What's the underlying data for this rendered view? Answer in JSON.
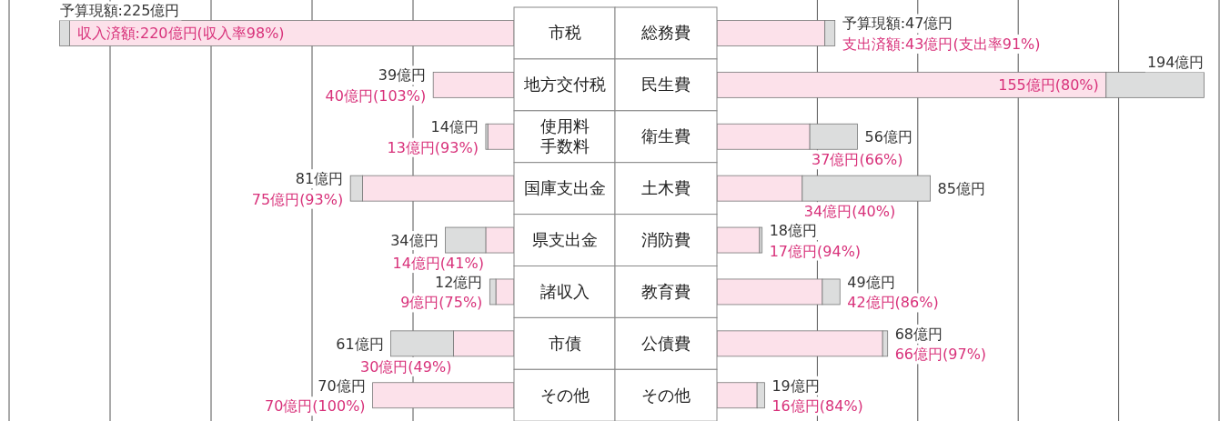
{
  "chart_data": [
    {
      "type": "bar",
      "orientation": "horizontal",
      "stacked": true,
      "categories": [
        "市税",
        "地方交付税",
        "使用料手数料",
        "国庫支出金",
        "県支出金",
        "諸収入",
        "市債",
        "その他"
      ],
      "series": [
        {
          "color": "#fce1ea",
          "values": [
            220,
            40,
            13,
            75,
            14,
            9,
            30,
            70
          ],
          "value_labels": [
            "収入済額:220億円(収入率98%)",
            "40億円(103%)",
            "13億円(93%)",
            "75億円(93%)",
            "14億円(41%)",
            "9億円(75%)",
            "30億円(49%)",
            "70億円(100%)"
          ]
        },
        {
          "color": "#dcdddd",
          "values": [
            5,
            0,
            1,
            6,
            20,
            3,
            31,
            0
          ]
        }
      ],
      "totals": [
        "予算現額:225億円",
        "39億円",
        "14億円",
        "81億円",
        "34億円",
        "12億円",
        "61億円",
        "70億円"
      ],
      "xlim": [
        250,
        0
      ],
      "xticks": [
        {
          "value": 50,
          "label": null
        },
        {
          "value": 100,
          "label": null
        },
        {
          "value": 150,
          "label": null
        },
        {
          "value": 200,
          "label": null
        },
        {
          "value": 250,
          "label": null
        }
      ],
      "grid": "x"
    },
    {
      "type": "bar",
      "orientation": "horizontal",
      "stacked": true,
      "categories": [
        "総務費",
        "民生費",
        "衛生費",
        "土木費",
        "消防費",
        "教育費",
        "公債費",
        "その他"
      ],
      "series": [
        {
          "color": "#fce1ea",
          "values": [
            43,
            155,
            37,
            34,
            17,
            42,
            66,
            16
          ],
          "value_labels": [
            "支出済額:43億円(支出率91%)",
            "155億円(80%)",
            "37億円(66%)",
            "34億円(40%)",
            "17億円(94%)",
            "42億円(86%)",
            "66億円(97%)",
            "16億円(84%)"
          ]
        },
        {
          "color": "#dcdddd",
          "values": [
            4,
            39,
            19,
            51,
            1,
            7,
            2,
            3
          ]
        }
      ],
      "totals": [
        "予算現額:47億円",
        "194億円",
        "56億円",
        "85億円",
        "18億円",
        "49億円",
        "68億円",
        "19億円"
      ],
      "xlim": [
        0,
        200
      ],
      "xticks": [
        {
          "value": 40,
          "label": null
        },
        {
          "value": 80,
          "label": null
        },
        {
          "value": 120,
          "label": null
        },
        {
          "value": 160,
          "label": null
        },
        {
          "value": 200,
          "label": null
        }
      ],
      "grid": "x"
    }
  ]
}
